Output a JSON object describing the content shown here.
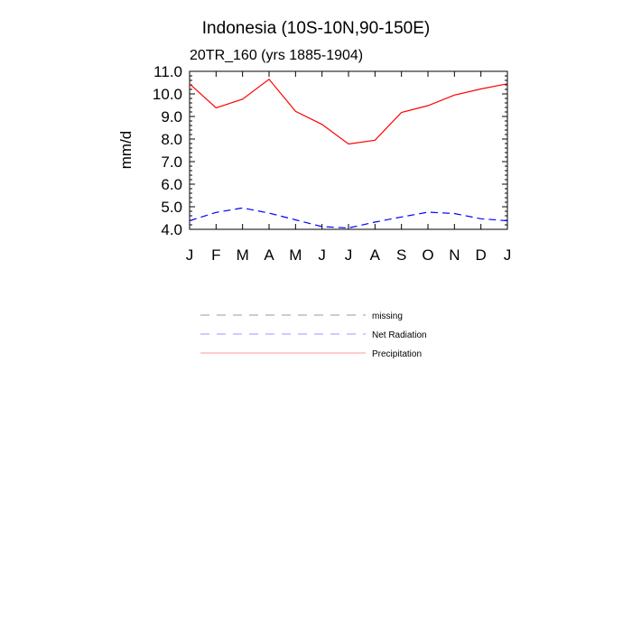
{
  "chart_data": {
    "type": "line",
    "title": "Indonesia (10S-10N,90-150E)",
    "subtitle": "20TR_160 (yrs 1885-1904)",
    "ylabel": "mm/d",
    "xlabel": "",
    "categories": [
      "J",
      "F",
      "M",
      "A",
      "M",
      "J",
      "J",
      "A",
      "S",
      "O",
      "N",
      "D",
      "J"
    ],
    "ylim": [
      4.0,
      11.0
    ],
    "yticks": [
      "4.0",
      "5.0",
      "6.0",
      "7.0",
      "8.0",
      "9.0",
      "10.0",
      "11.0"
    ],
    "grid": false,
    "legend_position": "below",
    "series": [
      {
        "name": "Precipitation",
        "color": "#ff0000",
        "dash": "solid",
        "values": [
          10.45,
          9.38,
          9.77,
          10.65,
          9.23,
          8.65,
          7.78,
          7.95,
          9.18,
          9.48,
          9.95,
          10.22,
          10.45
        ]
      },
      {
        "name": "Net Radiation",
        "color": "#0000ff",
        "dash": "dashed",
        "values": [
          4.38,
          4.75,
          4.95,
          4.72,
          4.42,
          4.12,
          4.06,
          4.32,
          4.55,
          4.76,
          4.7,
          4.47,
          4.38
        ]
      }
    ],
    "legend": [
      {
        "label": "missing",
        "color": "#999999",
        "dash": "dashed"
      },
      {
        "label": "Net Radiation",
        "color": "#9999ff",
        "dash": "dashed"
      },
      {
        "label": "Precipitation",
        "color": "#ff9999",
        "dash": "solid"
      }
    ]
  }
}
